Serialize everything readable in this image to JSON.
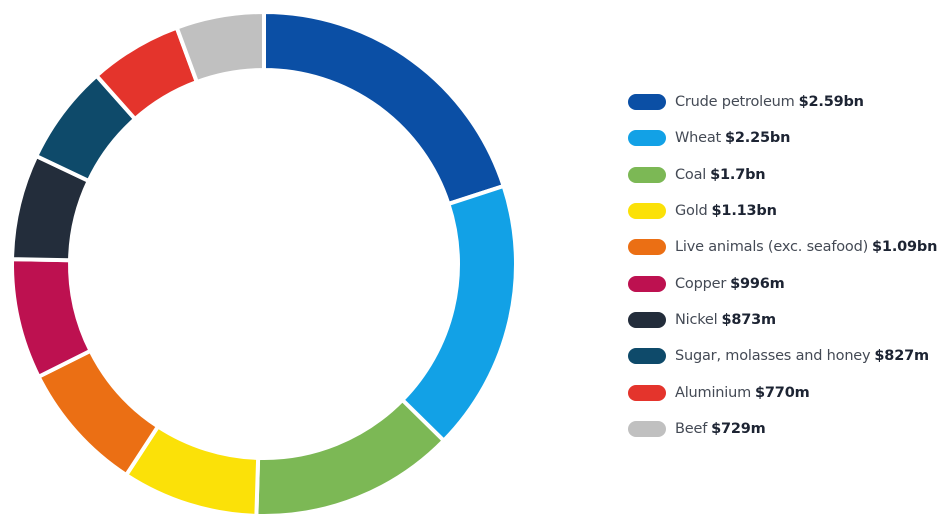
{
  "chart_data": {
    "type": "pie",
    "variant": "donut",
    "title": "",
    "legend_position": "right",
    "series": [
      {
        "label": "Crude petroleum",
        "value_label": "$2.59bn",
        "value": 2.59,
        "color": "#0b4fa5"
      },
      {
        "label": "Wheat",
        "value_label": "$2.25bn",
        "value": 2.25,
        "color": "#12a1e6"
      },
      {
        "label": "Coal",
        "value_label": "$1.7bn",
        "value": 1.7,
        "color": "#7cb855"
      },
      {
        "label": "Gold",
        "value_label": "$1.13bn",
        "value": 1.13,
        "color": "#fbe108"
      },
      {
        "label": "Live animals (exc. seafood)",
        "value_label": "$1.09bn",
        "value": 1.09,
        "color": "#eb6f14"
      },
      {
        "label": "Copper",
        "value_label": "$996m",
        "value": 0.996,
        "color": "#bd1150"
      },
      {
        "label": "Nickel",
        "value_label": "$873m",
        "value": 0.873,
        "color": "#232d3b"
      },
      {
        "label": "Sugar, molasses and honey",
        "value_label": "$827m",
        "value": 0.827,
        "color": "#0e4a6a"
      },
      {
        "label": "Aluminium",
        "value_label": "$770m",
        "value": 0.77,
        "color": "#e4342c"
      },
      {
        "label": "Beef",
        "value_label": "$729m",
        "value": 0.729,
        "color": "#c0c0c0"
      }
    ]
  }
}
